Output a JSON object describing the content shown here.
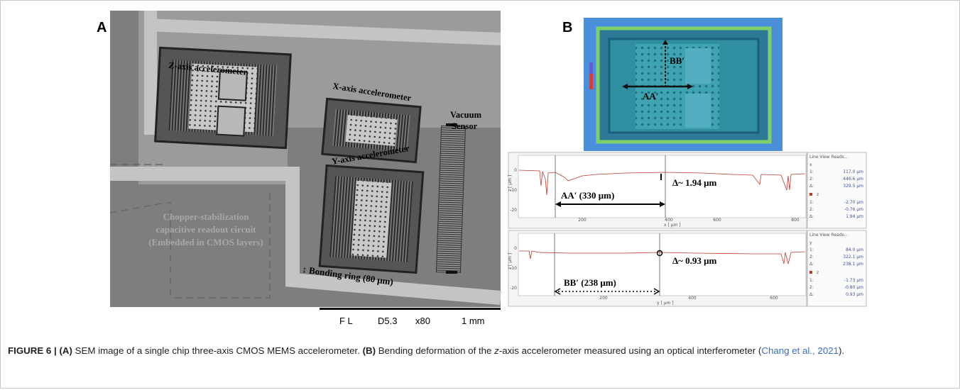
{
  "panel_a": {
    "label": "A",
    "annotations": [
      "Z-axis accelerometer",
      "X-axis accelerometer",
      "Y-axis accelerometer",
      "Vacuum",
      "Sensor",
      "Chopper-stabilization",
      "capacitive readout circuit",
      "(Embedded in CMOS layers)",
      "↕ Bonding ring (80 μm)"
    ],
    "scale_bar": [
      "F L",
      "D5.3",
      "x80",
      "1 mm"
    ]
  },
  "panel_b": {
    "label": "B",
    "map_labels": [
      "BB′",
      "AA′"
    ],
    "profiles": [
      {
        "span": "AA′  (330 μm)",
        "delta": "Δ~ 1.94 μm",
        "x_label": "x [ µm ]",
        "y_label": "z [ µm ]",
        "x_ticks": [
          "200",
          "400",
          "600",
          "800"
        ],
        "y_ticks": [
          "0",
          "-10",
          "-20"
        ],
        "panel_title": "Line View Reads...",
        "axis1": "x",
        "readout1": [
          [
            "1:",
            "117.0 µm"
          ],
          [
            "2:",
            "446.6 µm"
          ],
          [
            "Δ:",
            "329.5 µm"
          ]
        ],
        "axis2": "z",
        "readout2": [
          [
            "1:",
            "-2.70 µm"
          ],
          [
            "2:",
            "-0.76 µm"
          ],
          [
            "Δ:",
            "1.94 µm"
          ]
        ]
      },
      {
        "span": "BB′  (238 μm)",
        "delta": "Δ~ 0.93 μm",
        "x_label": "y [ µm ]",
        "y_label": "z [ µm ]",
        "x_ticks": [
          "200",
          "400",
          "600"
        ],
        "y_ticks": [
          "0",
          "-10",
          "-20"
        ],
        "panel_title": "Line View Reads...",
        "axis1": "y",
        "readout1": [
          [
            "1:",
            "84.0 µm"
          ],
          [
            "2:",
            "322.1 µm"
          ],
          [
            "Δ:",
            "238.1 µm"
          ]
        ],
        "axis2": "z",
        "readout2": [
          [
            "1:",
            "-1.73 µm"
          ],
          [
            "2:",
            "-0.80 µm"
          ],
          [
            "Δ:",
            "0.93 µm"
          ]
        ]
      }
    ]
  },
  "caption": {
    "label": "FIGURE 6 |",
    "part_a": "(A)",
    "text_a": "SEM image of a single chip three-axis CMOS MEMS accelerometer.",
    "part_b": "(B)",
    "text_b1": "Bending deformation of the ",
    "italic": "z",
    "text_b2": "-axis accelerometer measured using an optical interferometer (",
    "citation": "Chang et al., 2021",
    "text_end": ")."
  }
}
